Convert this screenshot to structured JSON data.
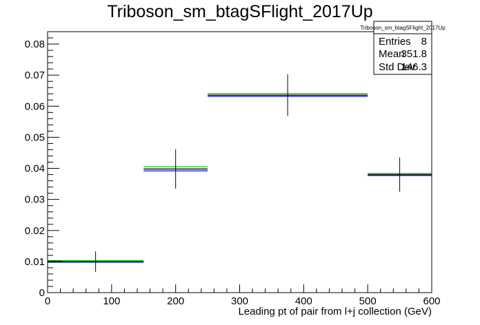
{
  "chart_data": {
    "type": "bar",
    "title": "Triboson_sm_btagSFlight_2017Up",
    "xlabel": "Leading pt of pair from l+j collection (GeV)",
    "ylabel": "",
    "xlim": [
      0,
      600
    ],
    "ylim": [
      0,
      0.084
    ],
    "xticks": [
      0,
      100,
      200,
      300,
      400,
      500,
      600
    ],
    "xtick_labels": [
      "0",
      "100",
      "200",
      "300",
      "400",
      "500",
      "600"
    ],
    "yticks": [
      0,
      0.01,
      0.02,
      0.03,
      0.04,
      0.05,
      0.06,
      0.07,
      0.08
    ],
    "ytick_labels": [
      "0",
      "0.01",
      "0.02",
      "0.03",
      "0.04",
      "0.05",
      "0.06",
      "0.07",
      "0.08"
    ],
    "grid": false,
    "bins": [
      {
        "xlow": 0,
        "xhigh": 150,
        "center": 75
      },
      {
        "xlow": 150,
        "xhigh": 250,
        "center": 200
      },
      {
        "xlow": 250,
        "xhigh": 500,
        "center": 375
      },
      {
        "xlow": 500,
        "xhigh": 600,
        "center": 550
      }
    ],
    "series": [
      {
        "values": [
          0.0103,
          0.0405,
          0.0641,
          0.0384
        ],
        "color": "#00cc00",
        "style": "step"
      },
      {
        "values": [
          0.01,
          0.0398,
          0.0636,
          0.038
        ],
        "color": "#000000",
        "style": "errorbar",
        "errors": [
          0.0033,
          0.0063,
          0.0067,
          0.0055
        ]
      },
      {
        "values": [
          0.0098,
          0.0392,
          0.0632,
          0.0377
        ],
        "color": "#0000cc",
        "style": "step"
      }
    ],
    "extra_black_segment": {
      "x0": 0,
      "x1": 22,
      "value": 0.01
    },
    "stats": {
      "title": "Triboson_sm_btagSFlight_2017Up",
      "rows": [
        {
          "label": "Entries",
          "value": "8"
        },
        {
          "label": "Mean",
          "value": "351.8"
        },
        {
          "label": "Std Dev",
          "value": "146.3"
        }
      ]
    }
  }
}
